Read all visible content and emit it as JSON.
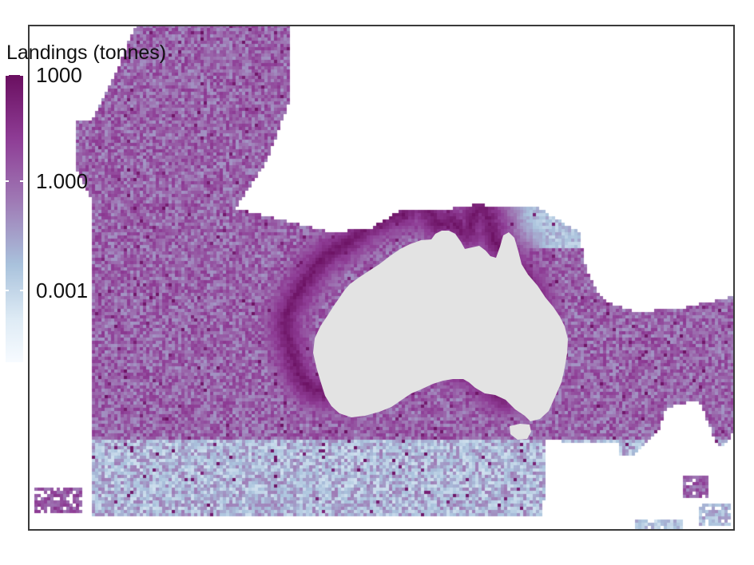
{
  "legend": {
    "title": "Landings (tonnes)",
    "ticks": [
      {
        "label": "1000",
        "level": 1.0
      },
      {
        "label": "1.000",
        "level": 0.63
      },
      {
        "label": "0.001",
        "level": 0.25
      }
    ],
    "scale_low_color": "#f7fbff",
    "scale_high_color": "#6a0f60"
  },
  "map": {
    "region": "Australia",
    "landmass_color": "#e3e3e3",
    "background_color": "#ffffff",
    "frame_color": "#3a3a3a"
  }
}
